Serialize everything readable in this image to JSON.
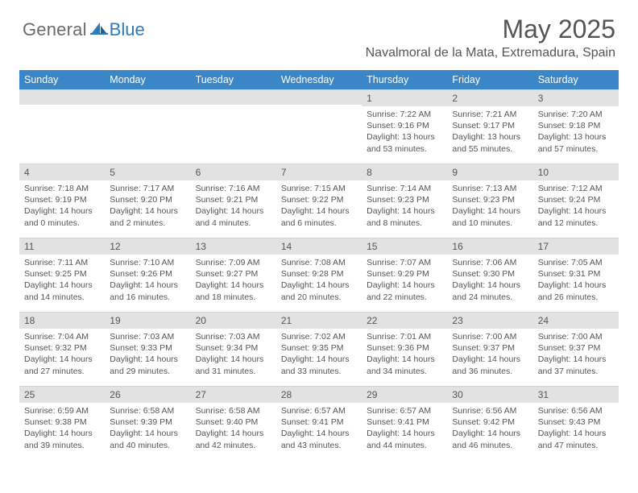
{
  "brand": {
    "general": "General",
    "blue": "Blue"
  },
  "title": "May 2025",
  "location": "Navalmoral de la Mata, Extremadura, Spain",
  "colors": {
    "header_bg": "#3b86c7",
    "header_text": "#ffffff",
    "daynum_bg": "#e2e2e2",
    "body_text": "#555555",
    "logo_grey": "#6a6a6a",
    "logo_blue": "#2a7ac0",
    "page_bg": "#ffffff"
  },
  "typography": {
    "title_fontsize": 32,
    "location_fontsize": 16,
    "weekday_fontsize": 12.5,
    "daynum_fontsize": 12,
    "body_fontsize": 10.5,
    "font_family": "Arial"
  },
  "weekdays": [
    "Sunday",
    "Monday",
    "Tuesday",
    "Wednesday",
    "Thursday",
    "Friday",
    "Saturday"
  ],
  "weeks": [
    [
      {
        "n": "",
        "sunrise": "",
        "sunset": "",
        "daylight": ""
      },
      {
        "n": "",
        "sunrise": "",
        "sunset": "",
        "daylight": ""
      },
      {
        "n": "",
        "sunrise": "",
        "sunset": "",
        "daylight": ""
      },
      {
        "n": "",
        "sunrise": "",
        "sunset": "",
        "daylight": ""
      },
      {
        "n": "1",
        "sunrise": "Sunrise: 7:22 AM",
        "sunset": "Sunset: 9:16 PM",
        "daylight": "Daylight: 13 hours and 53 minutes."
      },
      {
        "n": "2",
        "sunrise": "Sunrise: 7:21 AM",
        "sunset": "Sunset: 9:17 PM",
        "daylight": "Daylight: 13 hours and 55 minutes."
      },
      {
        "n": "3",
        "sunrise": "Sunrise: 7:20 AM",
        "sunset": "Sunset: 9:18 PM",
        "daylight": "Daylight: 13 hours and 57 minutes."
      }
    ],
    [
      {
        "n": "4",
        "sunrise": "Sunrise: 7:18 AM",
        "sunset": "Sunset: 9:19 PM",
        "daylight": "Daylight: 14 hours and 0 minutes."
      },
      {
        "n": "5",
        "sunrise": "Sunrise: 7:17 AM",
        "sunset": "Sunset: 9:20 PM",
        "daylight": "Daylight: 14 hours and 2 minutes."
      },
      {
        "n": "6",
        "sunrise": "Sunrise: 7:16 AM",
        "sunset": "Sunset: 9:21 PM",
        "daylight": "Daylight: 14 hours and 4 minutes."
      },
      {
        "n": "7",
        "sunrise": "Sunrise: 7:15 AM",
        "sunset": "Sunset: 9:22 PM",
        "daylight": "Daylight: 14 hours and 6 minutes."
      },
      {
        "n": "8",
        "sunrise": "Sunrise: 7:14 AM",
        "sunset": "Sunset: 9:23 PM",
        "daylight": "Daylight: 14 hours and 8 minutes."
      },
      {
        "n": "9",
        "sunrise": "Sunrise: 7:13 AM",
        "sunset": "Sunset: 9:23 PM",
        "daylight": "Daylight: 14 hours and 10 minutes."
      },
      {
        "n": "10",
        "sunrise": "Sunrise: 7:12 AM",
        "sunset": "Sunset: 9:24 PM",
        "daylight": "Daylight: 14 hours and 12 minutes."
      }
    ],
    [
      {
        "n": "11",
        "sunrise": "Sunrise: 7:11 AM",
        "sunset": "Sunset: 9:25 PM",
        "daylight": "Daylight: 14 hours and 14 minutes."
      },
      {
        "n": "12",
        "sunrise": "Sunrise: 7:10 AM",
        "sunset": "Sunset: 9:26 PM",
        "daylight": "Daylight: 14 hours and 16 minutes."
      },
      {
        "n": "13",
        "sunrise": "Sunrise: 7:09 AM",
        "sunset": "Sunset: 9:27 PM",
        "daylight": "Daylight: 14 hours and 18 minutes."
      },
      {
        "n": "14",
        "sunrise": "Sunrise: 7:08 AM",
        "sunset": "Sunset: 9:28 PM",
        "daylight": "Daylight: 14 hours and 20 minutes."
      },
      {
        "n": "15",
        "sunrise": "Sunrise: 7:07 AM",
        "sunset": "Sunset: 9:29 PM",
        "daylight": "Daylight: 14 hours and 22 minutes."
      },
      {
        "n": "16",
        "sunrise": "Sunrise: 7:06 AM",
        "sunset": "Sunset: 9:30 PM",
        "daylight": "Daylight: 14 hours and 24 minutes."
      },
      {
        "n": "17",
        "sunrise": "Sunrise: 7:05 AM",
        "sunset": "Sunset: 9:31 PM",
        "daylight": "Daylight: 14 hours and 26 minutes."
      }
    ],
    [
      {
        "n": "18",
        "sunrise": "Sunrise: 7:04 AM",
        "sunset": "Sunset: 9:32 PM",
        "daylight": "Daylight: 14 hours and 27 minutes."
      },
      {
        "n": "19",
        "sunrise": "Sunrise: 7:03 AM",
        "sunset": "Sunset: 9:33 PM",
        "daylight": "Daylight: 14 hours and 29 minutes."
      },
      {
        "n": "20",
        "sunrise": "Sunrise: 7:03 AM",
        "sunset": "Sunset: 9:34 PM",
        "daylight": "Daylight: 14 hours and 31 minutes."
      },
      {
        "n": "21",
        "sunrise": "Sunrise: 7:02 AM",
        "sunset": "Sunset: 9:35 PM",
        "daylight": "Daylight: 14 hours and 33 minutes."
      },
      {
        "n": "22",
        "sunrise": "Sunrise: 7:01 AM",
        "sunset": "Sunset: 9:36 PM",
        "daylight": "Daylight: 14 hours and 34 minutes."
      },
      {
        "n": "23",
        "sunrise": "Sunrise: 7:00 AM",
        "sunset": "Sunset: 9:37 PM",
        "daylight": "Daylight: 14 hours and 36 minutes."
      },
      {
        "n": "24",
        "sunrise": "Sunrise: 7:00 AM",
        "sunset": "Sunset: 9:37 PM",
        "daylight": "Daylight: 14 hours and 37 minutes."
      }
    ],
    [
      {
        "n": "25",
        "sunrise": "Sunrise: 6:59 AM",
        "sunset": "Sunset: 9:38 PM",
        "daylight": "Daylight: 14 hours and 39 minutes."
      },
      {
        "n": "26",
        "sunrise": "Sunrise: 6:58 AM",
        "sunset": "Sunset: 9:39 PM",
        "daylight": "Daylight: 14 hours and 40 minutes."
      },
      {
        "n": "27",
        "sunrise": "Sunrise: 6:58 AM",
        "sunset": "Sunset: 9:40 PM",
        "daylight": "Daylight: 14 hours and 42 minutes."
      },
      {
        "n": "28",
        "sunrise": "Sunrise: 6:57 AM",
        "sunset": "Sunset: 9:41 PM",
        "daylight": "Daylight: 14 hours and 43 minutes."
      },
      {
        "n": "29",
        "sunrise": "Sunrise: 6:57 AM",
        "sunset": "Sunset: 9:41 PM",
        "daylight": "Daylight: 14 hours and 44 minutes."
      },
      {
        "n": "30",
        "sunrise": "Sunrise: 6:56 AM",
        "sunset": "Sunset: 9:42 PM",
        "daylight": "Daylight: 14 hours and 46 minutes."
      },
      {
        "n": "31",
        "sunrise": "Sunrise: 6:56 AM",
        "sunset": "Sunset: 9:43 PM",
        "daylight": "Daylight: 14 hours and 47 minutes."
      }
    ]
  ]
}
